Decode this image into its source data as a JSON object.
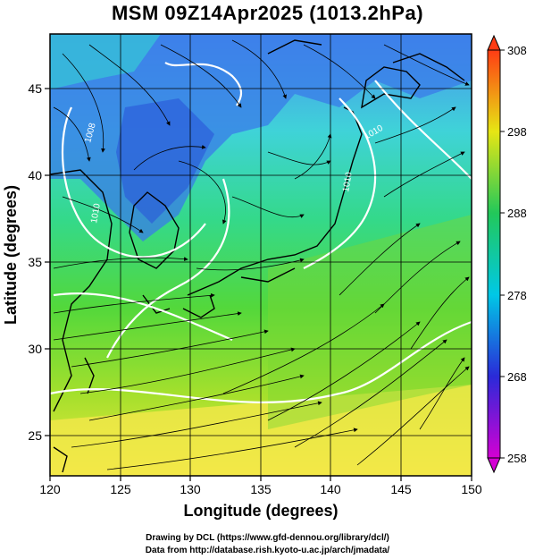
{
  "title": "MSM 09Z14Apr2025 (1013.2hPa)",
  "x_axis": {
    "label": "Longitude (degrees)",
    "min": 120,
    "max": 150,
    "ticks": [
      "120",
      "125",
      "130",
      "135",
      "140",
      "145",
      "150"
    ]
  },
  "y_axis": {
    "label": "Latitude  (degrees)",
    "min": 22.5,
    "max": 48,
    "ticks": [
      "25",
      "30",
      "35",
      "40",
      "45"
    ]
  },
  "colorbar": {
    "min": 258,
    "max": 308,
    "ticks": [
      "258",
      "268",
      "278",
      "288",
      "298",
      "308"
    ],
    "colors": [
      "#d400d4",
      "#2a2ad8",
      "#00c8e6",
      "#22c85a",
      "#e6e614",
      "#ff3c14"
    ]
  },
  "contour_labels": [
    "1008",
    "1010",
    "1010",
    "1010"
  ],
  "credits": [
    "Drawing by DCL (https://www.gfd-dennou.org/library/dcl/)",
    "Data from http://database.rish.kyoto-u.ac.jp/arch/jmadata/"
  ]
}
